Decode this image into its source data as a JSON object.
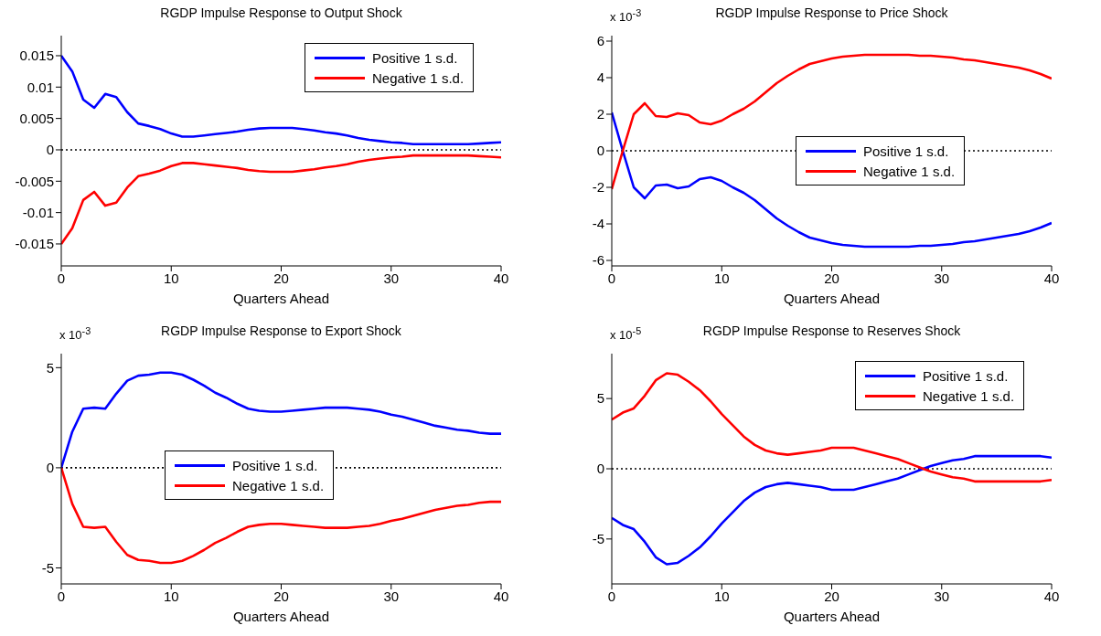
{
  "chart_data": [
    {
      "type": "line",
      "title": "RGDP Impulse Response to Output Shock",
      "xlabel": "Quarters Ahead",
      "x": [
        0,
        1,
        2,
        3,
        4,
        5,
        6,
        7,
        8,
        9,
        10,
        11,
        12,
        13,
        14,
        15,
        16,
        17,
        18,
        19,
        20,
        21,
        22,
        23,
        24,
        25,
        26,
        27,
        28,
        29,
        30,
        31,
        32,
        33,
        34,
        35,
        36,
        37,
        38,
        39,
        40
      ],
      "xlim": [
        0,
        40
      ],
      "xticks": [
        0,
        10,
        20,
        30,
        40
      ],
      "ylim": [
        -0.0185,
        0.0182
      ],
      "yticks": [
        -0.015,
        -0.01,
        -0.005,
        0,
        0.005,
        0.01,
        0.015
      ],
      "grid": false,
      "legend": "top right",
      "ref_lines": [
        {
          "axis": "y",
          "value": 0,
          "color": "#000000",
          "line_style": "dotted"
        }
      ],
      "series": [
        {
          "name": "Positive 1 s.d.",
          "color": "#0000ff",
          "values": [
            0.015,
            0.0125,
            0.008,
            0.0067,
            0.0089,
            0.0084,
            0.006,
            0.0042,
            0.0038,
            0.0033,
            0.0026,
            0.0021,
            0.0021,
            0.0023,
            0.0025,
            0.0027,
            0.0029,
            0.0032,
            0.0034,
            0.0035,
            0.0035,
            0.0035,
            0.0033,
            0.0031,
            0.0028,
            0.0026,
            0.0023,
            0.0019,
            0.0016,
            0.0014,
            0.0012,
            0.0011,
            0.0009,
            0.0009,
            0.0009,
            0.0009,
            0.0009,
            0.0009,
            0.001,
            0.0011,
            0.0012
          ]
        },
        {
          "name": "Negative 1 s.d.",
          "color": "#ff0000",
          "values": [
            -0.015,
            -0.0125,
            -0.008,
            -0.0067,
            -0.0089,
            -0.0084,
            -0.006,
            -0.0042,
            -0.0038,
            -0.0033,
            -0.0026,
            -0.0021,
            -0.0021,
            -0.0023,
            -0.0025,
            -0.0027,
            -0.0029,
            -0.0032,
            -0.0034,
            -0.0035,
            -0.0035,
            -0.0035,
            -0.0033,
            -0.0031,
            -0.0028,
            -0.0026,
            -0.0023,
            -0.0019,
            -0.0016,
            -0.0014,
            -0.0012,
            -0.0011,
            -0.0009,
            -0.0009,
            -0.0009,
            -0.0009,
            -0.0009,
            -0.0009,
            -0.001,
            -0.0011,
            -0.0012
          ]
        }
      ]
    },
    {
      "type": "line",
      "title": "RGDP Impulse Response to Price Shock",
      "xlabel": "Quarters Ahead",
      "annotations": [
        "x 10$^{-3}$"
      ],
      "x": [
        0,
        1,
        2,
        3,
        4,
        5,
        6,
        7,
        8,
        9,
        10,
        11,
        12,
        13,
        14,
        15,
        16,
        17,
        18,
        19,
        20,
        21,
        22,
        23,
        24,
        25,
        26,
        27,
        28,
        29,
        30,
        31,
        32,
        33,
        34,
        35,
        36,
        37,
        38,
        39,
        40
      ],
      "xlim": [
        0,
        40
      ],
      "xticks": [
        0,
        10,
        20,
        30,
        40
      ],
      "ylim": [
        -6.3,
        6.3
      ],
      "yticks": [
        -6,
        -4,
        -2,
        0,
        2,
        4,
        6
      ],
      "grid": false,
      "legend": "right",
      "ref_lines": [
        {
          "axis": "y",
          "value": 0,
          "color": "#000000",
          "line_style": "dotted"
        }
      ],
      "series": [
        {
          "name": "Positive 1 s.d.",
          "color": "#0000ff",
          "values": [
            2.1,
            0,
            -2.0,
            -2.6,
            -1.9,
            -1.85,
            -2.05,
            -1.95,
            -1.55,
            -1.45,
            -1.65,
            -2.0,
            -2.3,
            -2.7,
            -3.2,
            -3.7,
            -4.1,
            -4.45,
            -4.75,
            -4.9,
            -5.05,
            -5.15,
            -5.2,
            -5.25,
            -5.25,
            -5.25,
            -5.25,
            -5.25,
            -5.2,
            -5.2,
            -5.15,
            -5.1,
            -5.0,
            -4.95,
            -4.85,
            -4.75,
            -4.65,
            -4.55,
            -4.4,
            -4.2,
            -3.95
          ]
        },
        {
          "name": "Negative 1 s.d.",
          "color": "#ff0000",
          "values": [
            -2.1,
            0,
            2.0,
            2.6,
            1.9,
            1.85,
            2.05,
            1.95,
            1.55,
            1.45,
            1.65,
            2.0,
            2.3,
            2.7,
            3.2,
            3.7,
            4.1,
            4.45,
            4.75,
            4.9,
            5.05,
            5.15,
            5.2,
            5.25,
            5.25,
            5.25,
            5.25,
            5.25,
            5.2,
            5.2,
            5.15,
            5.1,
            5.0,
            4.95,
            4.85,
            4.75,
            4.65,
            4.55,
            4.4,
            4.2,
            3.95
          ]
        }
      ]
    },
    {
      "type": "line",
      "title": "RGDP Impulse Response to Export Shock",
      "xlabel": "Quarters Ahead",
      "annotations": [
        "x 10$^{-3}$"
      ],
      "x": [
        0,
        1,
        2,
        3,
        4,
        5,
        6,
        7,
        8,
        9,
        10,
        11,
        12,
        13,
        14,
        15,
        16,
        17,
        18,
        19,
        20,
        21,
        22,
        23,
        24,
        25,
        26,
        27,
        28,
        29,
        30,
        31,
        32,
        33,
        34,
        35,
        36,
        37,
        38,
        39,
        40
      ],
      "xlim": [
        0,
        40
      ],
      "xticks": [
        0,
        10,
        20,
        30,
        40
      ],
      "ylim": [
        -5.8,
        5.7
      ],
      "yticks": [
        -5,
        0,
        5
      ],
      "grid": false,
      "legend": "center",
      "ref_lines": [
        {
          "axis": "y",
          "value": 0,
          "color": "#000000",
          "line_style": "dotted"
        }
      ],
      "series": [
        {
          "name": "Positive 1 s.d.",
          "color": "#0000ff",
          "values": [
            0,
            1.8,
            2.95,
            3.0,
            2.95,
            3.7,
            4.35,
            4.6,
            4.65,
            4.75,
            4.75,
            4.65,
            4.4,
            4.1,
            3.75,
            3.5,
            3.2,
            2.95,
            2.85,
            2.8,
            2.8,
            2.85,
            2.9,
            2.95,
            3.0,
            3.0,
            3.0,
            2.95,
            2.9,
            2.8,
            2.65,
            2.55,
            2.4,
            2.25,
            2.1,
            2.0,
            1.9,
            1.85,
            1.75,
            1.7,
            1.7
          ]
        },
        {
          "name": "Negative 1 s.d.",
          "color": "#ff0000",
          "values": [
            0,
            -1.8,
            -2.95,
            -3.0,
            -2.95,
            -3.7,
            -4.35,
            -4.6,
            -4.65,
            -4.75,
            -4.75,
            -4.65,
            -4.4,
            -4.1,
            -3.75,
            -3.5,
            -3.2,
            -2.95,
            -2.85,
            -2.8,
            -2.8,
            -2.85,
            -2.9,
            -2.95,
            -3.0,
            -3.0,
            -3.0,
            -2.95,
            -2.9,
            -2.8,
            -2.65,
            -2.55,
            -2.4,
            -2.25,
            -2.1,
            -2.0,
            -1.9,
            -1.85,
            -1.75,
            -1.7,
            -1.7
          ]
        }
      ]
    },
    {
      "type": "line",
      "title": "RGDP Impulse Response to Reserves Shock",
      "xlabel": "Quarters Ahead",
      "annotations": [
        "x 10$^{-5}$"
      ],
      "x": [
        0,
        1,
        2,
        3,
        4,
        5,
        6,
        7,
        8,
        9,
        10,
        11,
        12,
        13,
        14,
        15,
        16,
        17,
        18,
        19,
        20,
        21,
        22,
        23,
        24,
        25,
        26,
        27,
        28,
        29,
        30,
        31,
        32,
        33,
        34,
        35,
        36,
        37,
        38,
        39,
        40
      ],
      "xlim": [
        0,
        40
      ],
      "xticks": [
        0,
        10,
        20,
        30,
        40
      ],
      "ylim": [
        -8.2,
        8.2
      ],
      "yticks": [
        -5,
        0,
        5
      ],
      "grid": false,
      "legend": "top right",
      "ref_lines": [
        {
          "axis": "y",
          "value": 0,
          "color": "#000000",
          "line_style": "dotted"
        }
      ],
      "series": [
        {
          "name": "Positive 1 s.d.",
          "color": "#0000ff",
          "values": [
            -3.5,
            -4.0,
            -4.3,
            -5.2,
            -6.3,
            -6.8,
            -6.7,
            -6.2,
            -5.6,
            -4.8,
            -3.9,
            -3.1,
            -2.3,
            -1.7,
            -1.3,
            -1.1,
            -1.0,
            -1.1,
            -1.2,
            -1.3,
            -1.5,
            -1.5,
            -1.5,
            -1.3,
            -1.1,
            -0.9,
            -0.7,
            -0.4,
            -0.1,
            0.2,
            0.4,
            0.6,
            0.7,
            0.9,
            0.9,
            0.9,
            0.9,
            0.9,
            0.9,
            0.9,
            0.8
          ]
        },
        {
          "name": "Negative 1 s.d.",
          "color": "#ff0000",
          "values": [
            3.5,
            4.0,
            4.3,
            5.2,
            6.3,
            6.8,
            6.7,
            6.2,
            5.6,
            4.8,
            3.9,
            3.1,
            2.3,
            1.7,
            1.3,
            1.1,
            1.0,
            1.1,
            1.2,
            1.3,
            1.5,
            1.5,
            1.5,
            1.3,
            1.1,
            0.9,
            0.7,
            0.4,
            0.1,
            -0.2,
            -0.4,
            -0.6,
            -0.7,
            -0.9,
            -0.9,
            -0.9,
            -0.9,
            -0.9,
            -0.9,
            -0.9,
            -0.8
          ]
        }
      ]
    }
  ]
}
